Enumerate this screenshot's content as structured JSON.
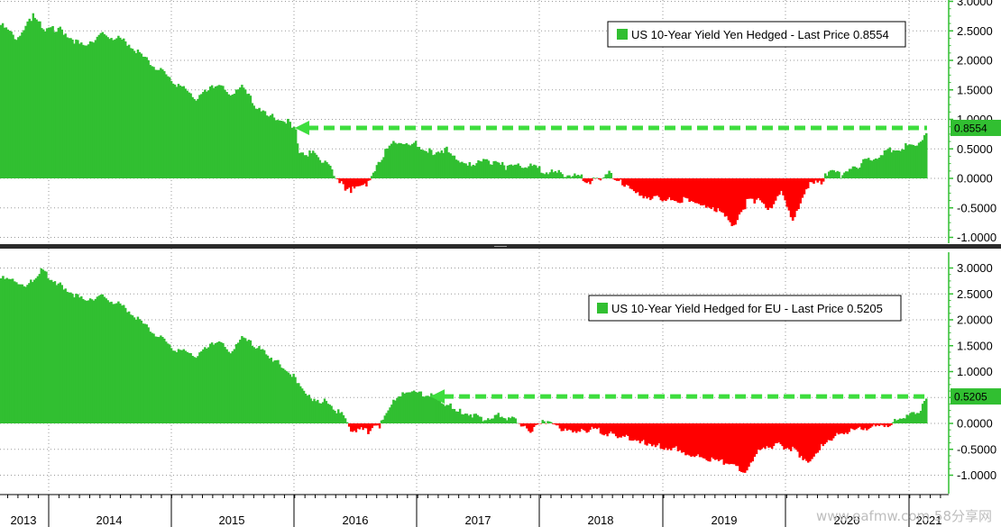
{
  "chart_data": [
    {
      "type": "area",
      "legend": "US 10-Year Yield Yen Hedged - Last Price 0.8554",
      "last_price_label": "0.8554",
      "last_value": 0.8554,
      "ylim": [
        -1.1,
        3.1
      ],
      "y_ticks": [
        3.0,
        2.5,
        2.0,
        1.5,
        1.0,
        0.5,
        0.0,
        -0.5,
        -1.0
      ],
      "y_tick_labels": [
        "3.0000",
        "2.5000",
        "2.0000",
        "1.5000",
        "1.0000",
        "0.5000",
        "0.0000",
        "-0.5000",
        "-1.0000"
      ],
      "positive_color": "#31bf31",
      "negative_color": "#ff0000",
      "arrow_color": "#3ddd3d",
      "arrow_from_x": 2015.57,
      "series": [
        {
          "x": [
            2013.0,
            2013.15,
            2013.28,
            2013.4,
            2013.5,
            2013.7,
            2013.9,
            2014.1,
            2014.3,
            2014.5,
            2014.7,
            2014.9,
            2015.0,
            2015.1,
            2015.25,
            2015.35,
            2015.5,
            2015.57,
            2015.6,
            2015.75,
            2015.9,
            2016.0,
            2016.05,
            2016.2,
            2016.35,
            2016.42,
            2016.5,
            2016.6,
            2016.75,
            2016.9,
            2017.0,
            2017.1,
            2017.25,
            2017.4,
            2017.6,
            2017.8,
            2018.0,
            2018.15,
            2018.3,
            2018.4,
            2018.5,
            2018.6,
            2018.75,
            2018.9,
            2019.0,
            2019.1,
            2019.25,
            2019.4,
            2019.5,
            2019.6,
            2019.7,
            2019.8,
            2019.9,
            2020.0,
            2020.05,
            2020.15,
            2020.2,
            2020.35,
            2020.5,
            2020.7,
            2020.9,
            2021.0,
            2021.08
          ],
          "y": [
            2.6,
            2.35,
            2.75,
            2.5,
            2.55,
            2.25,
            2.45,
            2.3,
            1.95,
            1.65,
            1.35,
            1.6,
            1.35,
            1.55,
            1.15,
            1.05,
            0.95,
            0.85,
            0.45,
            0.4,
            0.1,
            -0.15,
            -0.2,
            -0.1,
            0.45,
            0.6,
            0.55,
            0.6,
            0.45,
            0.5,
            0.3,
            0.25,
            0.3,
            0.2,
            0.2,
            0.1,
            0.05,
            -0.05,
            0.1,
            -0.05,
            -0.15,
            -0.3,
            -0.35,
            -0.4,
            -0.35,
            -0.5,
            -0.55,
            -0.8,
            -0.4,
            -0.35,
            -0.5,
            -0.2,
            -0.7,
            -0.25,
            -0.05,
            -0.1,
            0.1,
            0.05,
            0.25,
            0.45,
            0.55,
            0.6,
            0.8554
          ]
        }
      ]
    },
    {
      "type": "area",
      "legend": "US 10-Year Yield Hedged for EU - Last Price 0.5205",
      "last_price_label": "0.5205",
      "last_value": 0.5205,
      "ylim": [
        -1.1,
        3.1
      ],
      "y_ticks": [
        3.0,
        2.5,
        2.0,
        1.5,
        1.0,
        0.5,
        0.0,
        -0.5,
        -1.0
      ],
      "y_tick_labels": [
        "3.0000",
        "2.5000",
        "2.0000",
        "1.5000",
        "1.0000",
        "0.5000",
        "0.0000",
        "-0.5000",
        "-1.0000"
      ],
      "positive_color": "#31bf31",
      "negative_color": "#ff0000",
      "arrow_color": "#3ddd3d",
      "arrow_from_x": 2016.75,
      "series": [
        {
          "x": [
            2013.0,
            2013.1,
            2013.2,
            2013.35,
            2013.5,
            2013.7,
            2013.9,
            2014.1,
            2014.3,
            2014.5,
            2014.7,
            2014.9,
            2015.0,
            2015.1,
            2015.25,
            2015.4,
            2015.55,
            2015.7,
            2015.85,
            2016.0,
            2016.05,
            2016.2,
            2016.3,
            2016.42,
            2016.5,
            2016.6,
            2016.75,
            2016.9,
            2017.0,
            2017.2,
            2017.35,
            2017.5,
            2017.6,
            2017.75,
            2017.9,
            2018.0,
            2018.15,
            2018.3,
            2018.45,
            2018.6,
            2018.75,
            2018.9,
            2019.0,
            2019.15,
            2019.3,
            2019.5,
            2019.6,
            2019.75,
            2019.9,
            2020.05,
            2020.15,
            2020.3,
            2020.5,
            2020.7,
            2020.85,
            2021.0,
            2021.08
          ],
          "y": [
            2.8,
            2.75,
            2.6,
            2.95,
            2.7,
            2.4,
            2.45,
            2.2,
            1.8,
            1.45,
            1.3,
            1.6,
            1.3,
            1.65,
            1.45,
            1.2,
            0.9,
            0.5,
            0.4,
            0.1,
            -0.1,
            -0.15,
            -0.05,
            0.4,
            0.55,
            0.6,
            0.55,
            0.35,
            0.25,
            0.1,
            0.15,
            0.05,
            -0.15,
            0.05,
            -0.15,
            -0.2,
            -0.1,
            -0.2,
            -0.25,
            -0.35,
            -0.45,
            -0.5,
            -0.6,
            -0.7,
            -0.75,
            -0.95,
            -0.55,
            -0.4,
            -0.5,
            -0.75,
            -0.4,
            -0.2,
            -0.1,
            -0.05,
            0.1,
            0.2,
            0.5205
          ]
        }
      ]
    }
  ],
  "x_axis": {
    "years": [
      "2013",
      "2014",
      "2015",
      "2016",
      "2017",
      "2018",
      "2019",
      "2020",
      "2021"
    ],
    "year_positions": [
      2013.0,
      2014.0,
      2015.0,
      2016.0,
      2017.0,
      2018.0,
      2019.0,
      2020.0,
      2021.0
    ],
    "xlim": [
      2012.8,
      2021.25
    ]
  },
  "watermark": "www.eafmw.com 58分享网",
  "grid": true
}
